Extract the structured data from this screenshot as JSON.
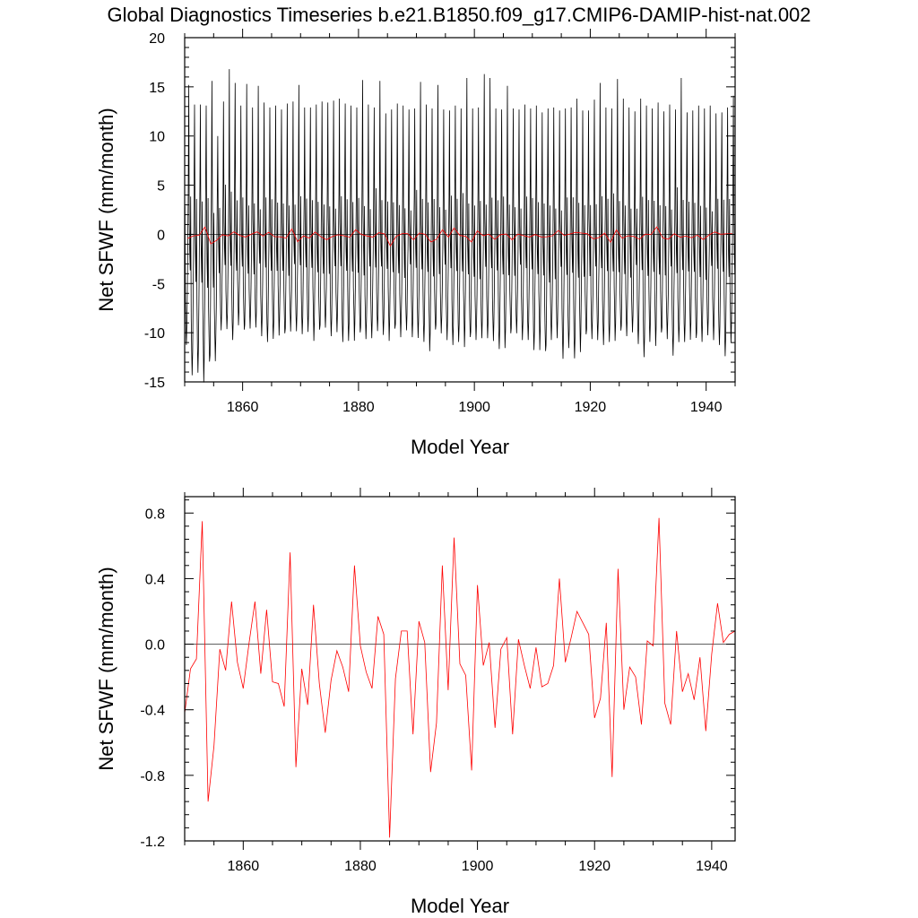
{
  "figure_title": "Global Diagnostics Timeseries b.e21.B1850.f09_g17.CMIP6-DAMIP-hist-nat.002",
  "chart_data": [
    {
      "type": "line",
      "xlabel": "Model Year",
      "ylabel": "Net SFWF (mm/month)",
      "xlim": [
        1850,
        1945
      ],
      "ylim": [
        -15,
        20
      ],
      "xticks": [
        1860,
        1880,
        1900,
        1920,
        1940
      ],
      "xtick_labels": [
        "1860",
        "1880",
        "1900",
        "1920",
        "1940"
      ],
      "yticks": [
        -15,
        -10,
        -5,
        0,
        5,
        10,
        15,
        20
      ],
      "ytick_labels": [
        "-15",
        "-10",
        "-5",
        "0",
        "5",
        "10",
        "15",
        "20"
      ],
      "reference_line": 0,
      "grid": false,
      "series": [
        {
          "color": "#000000",
          "x_start": 1850.04,
          "x_step": 0.08333,
          "annual_peak": [
            15.2,
            13.2,
            13.2,
            13.1,
            15.6,
            10,
            13.5,
            16.8,
            15.4,
            13.1,
            15.3,
            12.9,
            15.1,
            13.4,
            12.9,
            13.1,
            12.7,
            13.3,
            13.5,
            15.2,
            12.9,
            12.9,
            13.2,
            13.5,
            13.4,
            13.6,
            13.8,
            13.3,
            13.1,
            12.9,
            15.7,
            13.2,
            12.9,
            15.6,
            12.3,
            12.7,
            13.3,
            13.1,
            12.7,
            12.8,
            15.5,
            13.2,
            12.8,
            15.2,
            12.7,
            12.6,
            13.1,
            12.8,
            15.9,
            12.8,
            12.9,
            16.3,
            15.9,
            12.8,
            12.7,
            15.1,
            12.8,
            12.7,
            13.2,
            12.8,
            13.1,
            12.4,
            12.8,
            12.9,
            12.6,
            12.8,
            12.9,
            13.8,
            12.6,
            12.6,
            13.7,
            15.4,
            12.9,
            12.8,
            15.8,
            13.8,
            12.9,
            12.5,
            13.8,
            13.1,
            12.8,
            13.4,
            12.5,
            13.2,
            12.7,
            15.9,
            12.4,
            12.6,
            13.1,
            12.8,
            13.1,
            12.3,
            12.4,
            12.9,
            14.1
          ],
          "annual_trough": [
            -11.2,
            -14,
            -13.5,
            -14.2,
            -13.5,
            -13.2,
            -9.8,
            -9.5,
            -10.4,
            -8.8,
            -10.2,
            -9.9,
            -9.6,
            -10.3,
            -10.7,
            -10.2,
            -9.7,
            -10.5,
            -10.1,
            -9.9,
            -10,
            -9.6,
            -10.3,
            -10.2,
            -9.8,
            -10.5,
            -9.9,
            -10.7,
            -10.4,
            -10.2,
            -10.4,
            -10.9,
            -10.6,
            -9.7,
            -9.9,
            -10.3,
            -10.1,
            -10.8,
            -9.9,
            -10.4,
            -10.3,
            -10.5,
            -11.2,
            -10.1,
            -10.3,
            -10.8,
            -11.1,
            -10.6,
            -10.9,
            -11,
            -11.1,
            -10.7,
            -10.5,
            -10.6,
            -11.2,
            -10.9,
            -10.5,
            -10.3,
            -10.8,
            -10.6,
            -11.4,
            -11.2,
            -12.5,
            -11.1,
            -10.7,
            -12.6,
            -11.3,
            -12.1,
            -11.3,
            -10.6,
            -10.9,
            -10.8,
            -11.1,
            -10.6,
            -10.3,
            -10.3,
            -10.7,
            -10.1,
            -11.1,
            -12.2,
            -10.5,
            -10.7,
            -10.4,
            -10.9,
            -12.4,
            -10.8,
            -10.6,
            -10.2,
            -11.1,
            -11.3,
            -10.4,
            -10.7,
            -11,
            -11.9,
            -10.4
          ]
        },
        {
          "color": "#ff0000",
          "x_start": 1850.5,
          "x_step": 1,
          "values_from_panel": 1
        }
      ]
    },
    {
      "type": "line",
      "xlabel": "Model Year",
      "ylabel": "Net SFWF (mm/month)",
      "xlim": [
        1850,
        1944
      ],
      "ylim": [
        -1.2,
        0.9
      ],
      "xticks": [
        1860,
        1880,
        1900,
        1920,
        1940
      ],
      "xtick_labels": [
        "1860",
        "1880",
        "1900",
        "1920",
        "1940"
      ],
      "yticks": [
        -1.2,
        -0.8,
        -0.4,
        0,
        0.4,
        0.8
      ],
      "ytick_labels": [
        "-1.2",
        "-0.8",
        "-0.4",
        "0.0",
        "0.4",
        "0.8"
      ],
      "reference_line": 0,
      "grid": false,
      "series": [
        {
          "color": "#ff0000",
          "x": [
            1850,
            1851,
            1852,
            1853,
            1854,
            1855,
            1856,
            1857,
            1858,
            1859,
            1860,
            1861,
            1862,
            1863,
            1864,
            1865,
            1866,
            1867,
            1868,
            1869,
            1870,
            1871,
            1872,
            1873,
            1874,
            1875,
            1876,
            1877,
            1878,
            1879,
            1880,
            1881,
            1882,
            1883,
            1884,
            1885,
            1886,
            1887,
            1888,
            1889,
            1890,
            1891,
            1892,
            1893,
            1894,
            1895,
            1896,
            1897,
            1898,
            1899,
            1900,
            1901,
            1902,
            1903,
            1904,
            1905,
            1906,
            1907,
            1908,
            1909,
            1910,
            1911,
            1912,
            1913,
            1914,
            1915,
            1916,
            1917,
            1918,
            1919,
            1920,
            1921,
            1922,
            1923,
            1924,
            1925,
            1926,
            1927,
            1928,
            1929,
            1930,
            1931,
            1932,
            1933,
            1934,
            1935,
            1936,
            1937,
            1938,
            1939,
            1940,
            1941,
            1942,
            1943,
            1944
          ],
          "values": [
            -0.42,
            -0.15,
            -0.09,
            0.75,
            -0.96,
            -0.62,
            -0.03,
            -0.16,
            0.26,
            -0.11,
            -0.27,
            0.01,
            0.26,
            -0.18,
            0.21,
            -0.23,
            -0.24,
            -0.38,
            0.56,
            -0.75,
            -0.15,
            -0.37,
            0.24,
            -0.24,
            -0.54,
            -0.22,
            -0.04,
            -0.14,
            -0.29,
            0.48,
            -0.01,
            -0.17,
            -0.27,
            0.17,
            0.06,
            -1.18,
            -0.21,
            0.08,
            0.08,
            -0.55,
            0.14,
            0.01,
            -0.78,
            -0.48,
            0.48,
            -0.28,
            0.65,
            -0.12,
            -0.19,
            -0.77,
            0.36,
            -0.13,
            0.01,
            -0.51,
            -0.03,
            0.04,
            -0.55,
            0.03,
            -0.13,
            -0.27,
            -0.02,
            -0.26,
            -0.24,
            -0.13,
            0.4,
            -0.11,
            0.04,
            0.2,
            0.13,
            0.06,
            -0.45,
            -0.33,
            0.13,
            -0.81,
            0.46,
            -0.4,
            -0.14,
            -0.2,
            -0.49,
            0.02,
            -0.01,
            0.77,
            -0.36,
            -0.49,
            0.08,
            -0.29,
            -0.18,
            -0.34,
            -0.08,
            -0.53,
            -0.06,
            0.25,
            0.01,
            0.06,
            0.08
          ]
        }
      ]
    }
  ]
}
